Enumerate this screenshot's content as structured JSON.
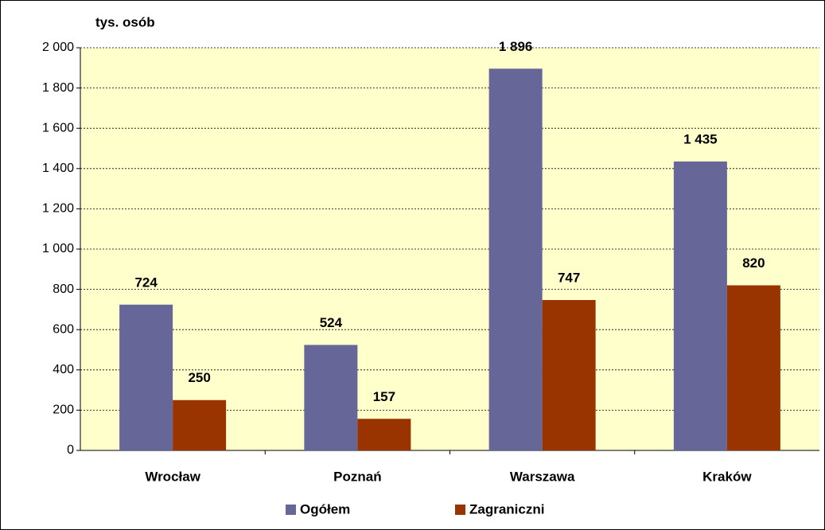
{
  "chart_data": {
    "type": "bar",
    "y_label": "tys. osób",
    "categories": [
      "Wrocław",
      "Poznań",
      "Warszawa",
      "Kraków"
    ],
    "series": [
      {
        "name": "Ogółem",
        "color": "#666699",
        "values": [
          724,
          524,
          1896,
          1435
        ],
        "value_labels": [
          "724",
          "524",
          "1 896",
          "1 435"
        ]
      },
      {
        "name": "Zagraniczni",
        "color": "#993300",
        "values": [
          250,
          157,
          747,
          820
        ],
        "value_labels": [
          "250",
          "157",
          "747",
          "820"
        ]
      }
    ],
    "ylim": [
      0,
      2000
    ],
    "yticks": [
      0,
      200,
      400,
      600,
      800,
      {
        "value": 1000,
        "label": "1 000"
      },
      {
        "value": 1200,
        "label": "1 200"
      },
      {
        "value": 1400,
        "label": "1 400"
      },
      {
        "value": 1600,
        "label": "1 600"
      },
      {
        "value": 1800,
        "label": "1 800"
      },
      {
        "value": 2000,
        "label": "2 000"
      }
    ],
    "grid": true,
    "plot_background": "#ffffcc",
    "legend": "bottom"
  }
}
